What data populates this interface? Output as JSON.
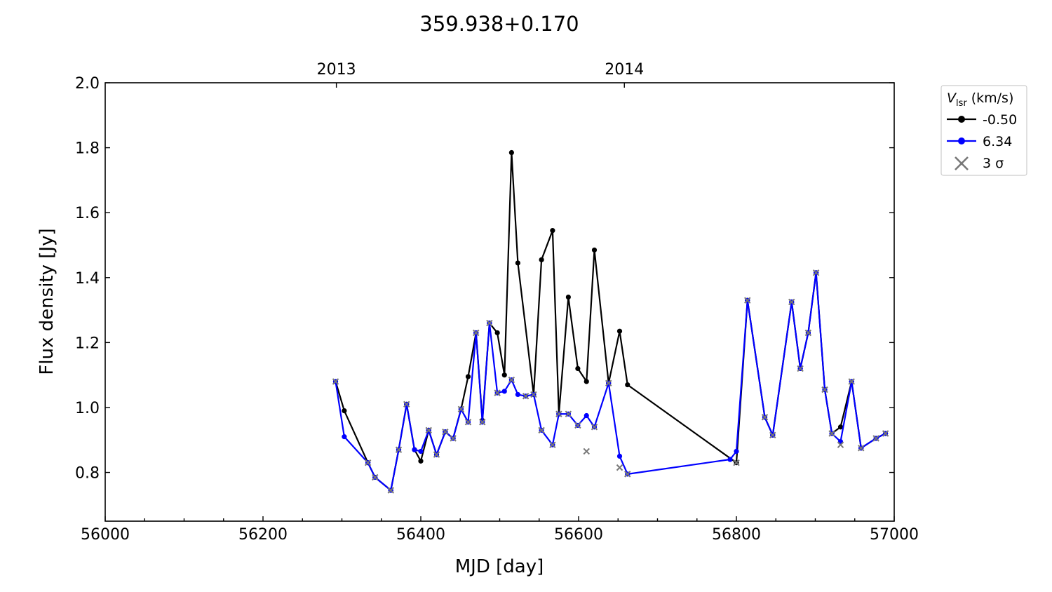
{
  "chart_data": {
    "type": "line",
    "title": "359.938+0.170",
    "xlabel": "MJD [day]",
    "ylabel": "Flux density [Jy]",
    "xlim": [
      56000,
      57000
    ],
    "ylim": [
      0.65,
      2.0
    ],
    "xticks": [
      56000,
      56200,
      56400,
      56600,
      56800,
      57000
    ],
    "yticks": [
      0.8,
      1.0,
      1.2,
      1.4,
      1.6,
      1.8,
      2.0
    ],
    "top_axis_ticks": [
      {
        "x": 56293,
        "label": "2013"
      },
      {
        "x": 56658,
        "label": "2014"
      }
    ],
    "grid": false,
    "legend": {
      "title_main": "V",
      "title_sub": "lsr",
      "title_units": "(km/s)",
      "placement": "outside-right",
      "upper_limit_label": "3 σ"
    },
    "series": [
      {
        "name": "-0.50",
        "color": "#000000",
        "points": [
          [
            56292,
            1.08
          ],
          [
            56303,
            0.99
          ],
          [
            56333,
            0.83
          ],
          [
            56342,
            0.785
          ],
          [
            56362,
            0.745
          ],
          [
            56372,
            0.87
          ],
          [
            56382,
            1.01
          ],
          [
            56392,
            0.87
          ],
          [
            56400,
            0.835
          ],
          [
            56410,
            0.93
          ],
          [
            56420,
            0.855
          ],
          [
            56431,
            0.925
          ],
          [
            56441,
            0.905
          ],
          [
            56451,
            0.995
          ],
          [
            56460,
            1.095
          ],
          [
            56470,
            1.23
          ],
          [
            56478,
            0.96
          ],
          [
            56487,
            1.26
          ],
          [
            56497,
            1.23
          ],
          [
            56506,
            1.1
          ],
          [
            56515,
            1.785
          ],
          [
            56523,
            1.445
          ],
          [
            56543,
            1.04
          ],
          [
            56553,
            1.455
          ],
          [
            56567,
            1.545
          ],
          [
            56575,
            0.98
          ],
          [
            56587,
            1.34
          ],
          [
            56599,
            1.12
          ],
          [
            56610,
            1.08
          ],
          [
            56620,
            1.485
          ],
          [
            56638,
            1.075
          ],
          [
            56652,
            1.235
          ],
          [
            56662,
            1.07
          ],
          [
            56800,
            0.83
          ],
          [
            56814,
            1.33
          ],
          [
            56836,
            0.97
          ],
          [
            56846,
            0.915
          ],
          [
            56870,
            1.325
          ],
          [
            56881,
            1.12
          ],
          [
            56891,
            1.23
          ],
          [
            56901,
            1.415
          ],
          [
            56912,
            1.055
          ],
          [
            56921,
            0.92
          ],
          [
            56932,
            0.94
          ],
          [
            56946,
            1.08
          ],
          [
            56958,
            0.875
          ],
          [
            56977,
            0.905
          ],
          [
            56989,
            0.92
          ]
        ]
      },
      {
        "name": "6.34",
        "color": "#0000ff",
        "points": [
          [
            56292,
            1.08
          ],
          [
            56303,
            0.91
          ],
          [
            56333,
            0.83
          ],
          [
            56342,
            0.785
          ],
          [
            56362,
            0.745
          ],
          [
            56372,
            0.87
          ],
          [
            56382,
            1.01
          ],
          [
            56392,
            0.87
          ],
          [
            56400,
            0.865
          ],
          [
            56410,
            0.93
          ],
          [
            56420,
            0.855
          ],
          [
            56431,
            0.925
          ],
          [
            56441,
            0.905
          ],
          [
            56451,
            0.995
          ],
          [
            56460,
            0.955
          ],
          [
            56470,
            1.23
          ],
          [
            56478,
            0.955
          ],
          [
            56487,
            1.26
          ],
          [
            56497,
            1.045
          ],
          [
            56506,
            1.05
          ],
          [
            56515,
            1.085
          ],
          [
            56523,
            1.04
          ],
          [
            56533,
            1.035
          ],
          [
            56543,
            1.04
          ],
          [
            56553,
            0.93
          ],
          [
            56567,
            0.885
          ],
          [
            56575,
            0.98
          ],
          [
            56587,
            0.98
          ],
          [
            56599,
            0.945
          ],
          [
            56610,
            0.975
          ],
          [
            56620,
            0.94
          ],
          [
            56638,
            1.075
          ],
          [
            56652,
            0.85
          ],
          [
            56662,
            0.795
          ],
          [
            56792,
            0.84
          ],
          [
            56800,
            0.865
          ],
          [
            56814,
            1.33
          ],
          [
            56836,
            0.97
          ],
          [
            56846,
            0.915
          ],
          [
            56870,
            1.325
          ],
          [
            56881,
            1.12
          ],
          [
            56891,
            1.23
          ],
          [
            56901,
            1.415
          ],
          [
            56912,
            1.055
          ],
          [
            56921,
            0.92
          ],
          [
            56932,
            0.895
          ],
          [
            56946,
            1.08
          ],
          [
            56958,
            0.875
          ],
          [
            56977,
            0.905
          ],
          [
            56989,
            0.92
          ]
        ]
      }
    ],
    "upper_limits_3sigma": [
      [
        56292,
        1.08
      ],
      [
        56333,
        0.83
      ],
      [
        56342,
        0.785
      ],
      [
        56362,
        0.745
      ],
      [
        56372,
        0.87
      ],
      [
        56382,
        1.01
      ],
      [
        56410,
        0.93
      ],
      [
        56420,
        0.855
      ],
      [
        56431,
        0.925
      ],
      [
        56441,
        0.905
      ],
      [
        56451,
        0.995
      ],
      [
        56460,
        0.955
      ],
      [
        56470,
        1.23
      ],
      [
        56478,
        0.955
      ],
      [
        56487,
        1.26
      ],
      [
        56497,
        1.045
      ],
      [
        56515,
        1.085
      ],
      [
        56533,
        1.035
      ],
      [
        56543,
        1.04
      ],
      [
        56553,
        0.93
      ],
      [
        56567,
        0.885
      ],
      [
        56575,
        0.98
      ],
      [
        56587,
        0.98
      ],
      [
        56599,
        0.945
      ],
      [
        56610,
        0.865
      ],
      [
        56620,
        0.94
      ],
      [
        56638,
        1.075
      ],
      [
        56652,
        0.815
      ],
      [
        56662,
        0.795
      ],
      [
        56800,
        0.83
      ],
      [
        56814,
        1.33
      ],
      [
        56836,
        0.97
      ],
      [
        56846,
        0.915
      ],
      [
        56870,
        1.325
      ],
      [
        56881,
        1.12
      ],
      [
        56891,
        1.23
      ],
      [
        56901,
        1.415
      ],
      [
        56912,
        1.055
      ],
      [
        56921,
        0.92
      ],
      [
        56932,
        0.885
      ],
      [
        56946,
        1.08
      ],
      [
        56958,
        0.875
      ],
      [
        56977,
        0.905
      ],
      [
        56989,
        0.92
      ]
    ],
    "colors": {
      "upper_limit_marker": "#777777",
      "axes": "#000000"
    }
  }
}
